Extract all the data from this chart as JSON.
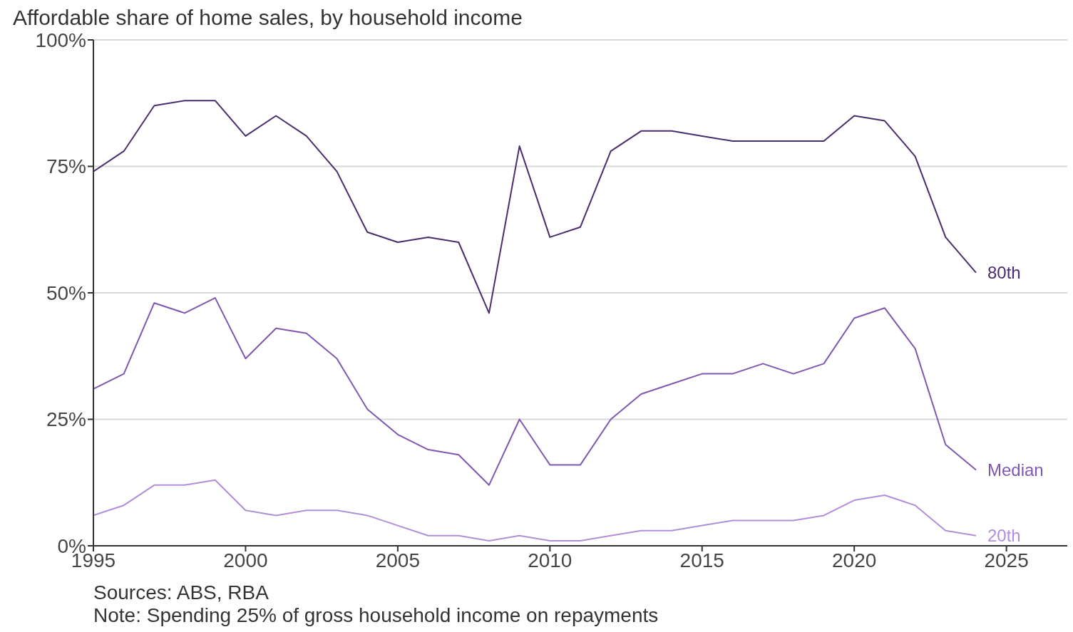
{
  "chart_data": {
    "type": "line",
    "title": "Affordable share of home sales, by household income",
    "x": [
      1995,
      1996,
      1997,
      1998,
      1999,
      2000,
      2001,
      2002,
      2003,
      2004,
      2005,
      2006,
      2007,
      2008,
      2009,
      2010,
      2011,
      2012,
      2013,
      2014,
      2015,
      2016,
      2017,
      2018,
      2019,
      2020,
      2021,
      2022,
      2023,
      2024
    ],
    "series": [
      {
        "name": "80th",
        "color": "#4a2c6e",
        "values": [
          74,
          78,
          87,
          88,
          88,
          81,
          85,
          81,
          74,
          62,
          60,
          61,
          60,
          46,
          79,
          61,
          63,
          78,
          82,
          82,
          81,
          80,
          80,
          80,
          80,
          85,
          84,
          77,
          61,
          54
        ]
      },
      {
        "name": "Median",
        "color": "#7e57b0",
        "values": [
          31,
          34,
          48,
          46,
          49,
          37,
          43,
          42,
          37,
          27,
          22,
          19,
          18,
          12,
          25,
          16,
          16,
          25,
          30,
          32,
          34,
          34,
          36,
          34,
          36,
          45,
          47,
          39,
          20,
          15
        ]
      },
      {
        "name": "20th",
        "color": "#b08fd8",
        "values": [
          6,
          8,
          12,
          12,
          13,
          7,
          6,
          7,
          7,
          6,
          4,
          2,
          2,
          1,
          2,
          1,
          1,
          2,
          3,
          3,
          4,
          5,
          5,
          5,
          6,
          9,
          10,
          8,
          3,
          2
        ]
      }
    ],
    "xlim": [
      1995,
      2027
    ],
    "xticks": [
      1995,
      2000,
      2005,
      2010,
      2015,
      2020,
      2025
    ],
    "ylim": [
      0,
      100
    ],
    "yticks": [
      {
        "value": 0,
        "label": "0%"
      },
      {
        "value": 25,
        "label": "25%"
      },
      {
        "value": 50,
        "label": "50%"
      },
      {
        "value": 75,
        "label": "75%"
      },
      {
        "value": 100,
        "label": "100%"
      }
    ],
    "grid": "y",
    "legend": false,
    "marker": "none",
    "line_style": "solid",
    "annotations": [
      "Sources: ABS, RBA",
      "Note: Spending 25% of gross household income on repayments"
    ]
  }
}
